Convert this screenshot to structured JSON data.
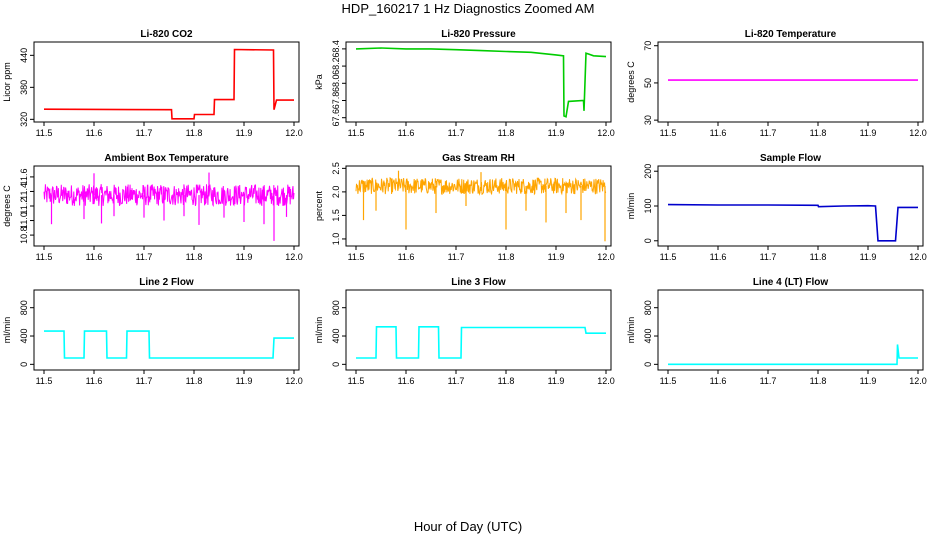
{
  "figure": {
    "title": "HDP_160217  1 Hz Diagnostics Zoomed AM",
    "xlabel": "Hour of Day (UTC)"
  },
  "chart_data": [
    {
      "type": "line",
      "title": "Li-820 CO2",
      "ylabel": "Licor ppm",
      "color": "#ff0000",
      "xlim": [
        11.48,
        12.01
      ],
      "ylim": [
        315,
        465
      ],
      "xticks": [
        "11.5",
        "11.6",
        "11.7",
        "11.8",
        "11.9",
        "12.0"
      ],
      "yticks": [
        "320",
        "380",
        "440"
      ],
      "series": [
        {
          "name": "",
          "x": [
            11.5,
            11.755,
            11.756,
            11.8,
            11.801,
            11.84,
            11.841,
            11.88,
            11.881,
            11.959,
            11.96,
            11.965,
            11.966,
            12.0
          ],
          "y": [
            339,
            338,
            321,
            321,
            329,
            329,
            357,
            357,
            451,
            450,
            338,
            356,
            356,
            356
          ]
        }
      ]
    },
    {
      "type": "line",
      "title": "Li-820 Pressure",
      "ylabel": "kPa",
      "color": "#00cc00",
      "xlim": [
        11.48,
        12.01
      ],
      "ylim": [
        67.55,
        68.48
      ],
      "xticks": [
        "11.5",
        "11.6",
        "11.7",
        "11.8",
        "11.9",
        "12.0"
      ],
      "yticks": [
        "67.6",
        "67.8",
        "68.0",
        "68.2",
        "68.4"
      ],
      "series": [
        {
          "name": "",
          "x": [
            11.5,
            11.55,
            11.6,
            11.65,
            11.7,
            11.75,
            11.8,
            11.85,
            11.9,
            11.915,
            11.916,
            11.92,
            11.925,
            11.955,
            11.956,
            11.96,
            11.965,
            11.975,
            12.0
          ],
          "y": [
            68.4,
            68.41,
            68.4,
            68.4,
            68.39,
            68.38,
            68.37,
            68.36,
            68.33,
            68.32,
            67.62,
            67.61,
            67.79,
            67.8,
            67.68,
            68.35,
            68.34,
            68.32,
            68.31
          ]
        }
      ]
    },
    {
      "type": "line",
      "title": "Li-820 Temperature",
      "ylabel": "degrees C",
      "color": "#ff00ff",
      "xlim": [
        11.48,
        12.01
      ],
      "ylim": [
        29,
        72
      ],
      "xticks": [
        "11.5",
        "11.6",
        "11.7",
        "11.8",
        "11.9",
        "12.0"
      ],
      "yticks": [
        "30",
        "50",
        "70"
      ],
      "series": [
        {
          "name": "",
          "x": [
            11.5,
            12.0
          ],
          "y": [
            51.5,
            51.5
          ]
        }
      ]
    },
    {
      "type": "line",
      "title": "Ambient Box Temperature",
      "ylabel": "degrees C",
      "color": "#ff00ff",
      "xlim": [
        11.48,
        12.01
      ],
      "ylim": [
        10.65,
        11.75
      ],
      "xticks": [
        "11.5",
        "11.6",
        "11.7",
        "11.8",
        "11.9",
        "12.0"
      ],
      "yticks": [
        "10.8",
        "11.0",
        "11.2",
        "11.4",
        "11.6"
      ],
      "band": {
        "low": 11.2,
        "high": 11.5
      },
      "spikes": [
        {
          "x": 11.515,
          "y": 10.95
        },
        {
          "x": 11.58,
          "y": 11.02
        },
        {
          "x": 11.615,
          "y": 10.96
        },
        {
          "x": 11.64,
          "y": 11.06
        },
        {
          "x": 11.7,
          "y": 11.04
        },
        {
          "x": 11.74,
          "y": 11.0
        },
        {
          "x": 11.78,
          "y": 11.06
        },
        {
          "x": 11.81,
          "y": 10.94
        },
        {
          "x": 11.86,
          "y": 11.04
        },
        {
          "x": 11.9,
          "y": 10.98
        },
        {
          "x": 11.94,
          "y": 10.95
        },
        {
          "x": 11.96,
          "y": 10.72
        },
        {
          "x": 11.985,
          "y": 11.05
        },
        {
          "x": 11.6,
          "y": 11.65
        },
        {
          "x": 11.83,
          "y": 11.66
        }
      ]
    },
    {
      "type": "line",
      "title": "Gas Stream RH",
      "ylabel": "percent",
      "color": "#ffa500",
      "xlim": [
        11.48,
        12.01
      ],
      "ylim": [
        0.85,
        2.55
      ],
      "xticks": [
        "11.5",
        "11.6",
        "11.7",
        "11.8",
        "11.9",
        "12.0"
      ],
      "yticks": [
        "1.0",
        "1.5",
        "2.0",
        "2.5"
      ],
      "band": {
        "low": 1.95,
        "high": 2.3
      },
      "spikes": [
        {
          "x": 11.515,
          "y": 1.4
        },
        {
          "x": 11.54,
          "y": 1.6
        },
        {
          "x": 11.6,
          "y": 1.2
        },
        {
          "x": 11.66,
          "y": 1.55
        },
        {
          "x": 11.72,
          "y": 1.7
        },
        {
          "x": 11.8,
          "y": 1.2
        },
        {
          "x": 11.84,
          "y": 1.6
        },
        {
          "x": 11.88,
          "y": 1.35
        },
        {
          "x": 11.92,
          "y": 1.55
        },
        {
          "x": 11.95,
          "y": 1.4
        },
        {
          "x": 11.998,
          "y": 0.95
        },
        {
          "x": 11.585,
          "y": 2.45
        },
        {
          "x": 11.75,
          "y": 2.42
        }
      ]
    },
    {
      "type": "line",
      "title": "Sample Flow",
      "ylabel": "ml/min",
      "color": "#0000cc",
      "xlim": [
        11.48,
        12.01
      ],
      "ylim": [
        -15,
        215
      ],
      "xticks": [
        "11.5",
        "11.6",
        "11.7",
        "11.8",
        "11.9",
        "12.0"
      ],
      "yticks": [
        "0",
        "100",
        "200"
      ],
      "series": [
        {
          "name": "",
          "x": [
            11.5,
            11.6,
            11.7,
            11.8,
            11.801,
            11.85,
            11.9,
            11.915,
            11.92,
            11.955,
            11.96,
            12.0
          ],
          "y": [
            104,
            103,
            103,
            102,
            98,
            100,
            101,
            100,
            0,
            0,
            96,
            96
          ]
        }
      ]
    },
    {
      "type": "line",
      "title": "Line 2 Flow",
      "ylabel": "ml/min",
      "color": "#00ffff",
      "xlim": [
        11.48,
        12.01
      ],
      "ylim": [
        -80,
        1050
      ],
      "xticks": [
        "11.5",
        "11.6",
        "11.7",
        "11.8",
        "11.9",
        "12.0"
      ],
      "yticks": [
        "0",
        "400",
        "800"
      ],
      "series": [
        {
          "name": "",
          "x": [
            11.5,
            11.54,
            11.541,
            11.58,
            11.581,
            11.625,
            11.626,
            11.665,
            11.666,
            11.71,
            11.711,
            11.958,
            11.96,
            12.0
          ],
          "y": [
            470,
            470,
            90,
            90,
            470,
            470,
            90,
            90,
            470,
            470,
            90,
            90,
            370,
            370
          ]
        }
      ]
    },
    {
      "type": "line",
      "title": "Line 3 Flow",
      "ylabel": "ml/min",
      "color": "#00ffff",
      "xlim": [
        11.48,
        12.01
      ],
      "ylim": [
        -80,
        1050
      ],
      "xticks": [
        "11.5",
        "11.6",
        "11.7",
        "11.8",
        "11.9",
        "12.0"
      ],
      "yticks": [
        "0",
        "400",
        "800"
      ],
      "series": [
        {
          "name": "",
          "x": [
            11.5,
            11.54,
            11.541,
            11.58,
            11.581,
            11.625,
            11.626,
            11.665,
            11.666,
            11.71,
            11.711,
            11.958,
            11.96,
            12.0
          ],
          "y": [
            90,
            90,
            530,
            530,
            90,
            90,
            530,
            530,
            90,
            90,
            520,
            520,
            440,
            440
          ]
        }
      ]
    },
    {
      "type": "line",
      "title": "Line 4 (LT) Flow",
      "ylabel": "ml/min",
      "color": "#00ffff",
      "xlim": [
        11.48,
        12.01
      ],
      "ylim": [
        -80,
        1050
      ],
      "xticks": [
        "11.5",
        "11.6",
        "11.7",
        "11.8",
        "11.9",
        "12.0"
      ],
      "yticks": [
        "0",
        "400",
        "800"
      ],
      "series": [
        {
          "name": "",
          "x": [
            11.5,
            11.955,
            11.958,
            11.959,
            11.962,
            12.0
          ],
          "y": [
            0,
            0,
            0,
            280,
            90,
            90
          ]
        }
      ]
    }
  ]
}
